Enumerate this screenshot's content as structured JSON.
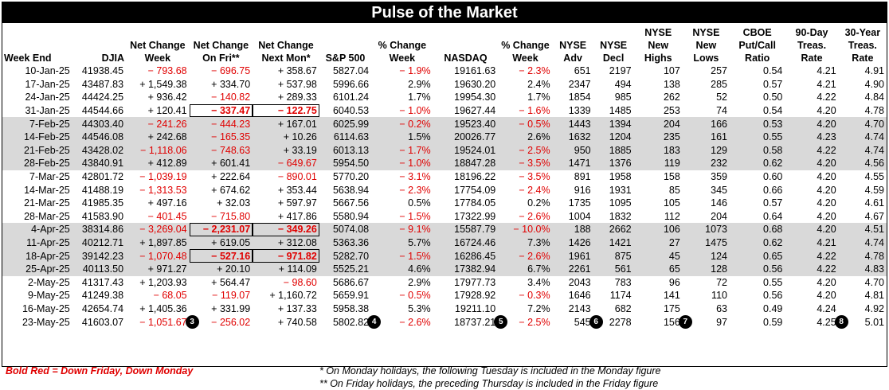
{
  "title": "Pulse of the Market",
  "headers": [
    "Week End",
    "DJIA",
    "Net Change Week",
    "Net Change On Fri**",
    "Net Change Next Mon*",
    "S&P 500",
    "% Change Week",
    "NASDAQ",
    "% Change Week",
    "NYSE Adv",
    "NYSE Decl",
    "NYSE New Highs",
    "NYSE New Lows",
    "CBOE Put/Call Ratio",
    "90-Day Treas. Rate",
    "30-Year Treas. Rate"
  ],
  "rows": [
    {
      "shade": false,
      "cells": [
        "10-Jan-25",
        "41938.45",
        "− 793.68",
        "− 696.75",
        "+ 358.67",
        "5827.04",
        "− 1.9%",
        "19161.63",
        "− 2.3%",
        "651",
        "2197",
        "107",
        "257",
        "0.54",
        "4.21",
        "4.91"
      ]
    },
    {
      "shade": false,
      "cells": [
        "17-Jan-25",
        "43487.83",
        "+ 1,549.38",
        "+ 334.70",
        "+ 537.98",
        "5996.66",
        "2.9%",
        "19630.20",
        "2.4%",
        "2347",
        "494",
        "138",
        "285",
        "0.57",
        "4.21",
        "4.90"
      ]
    },
    {
      "shade": false,
      "cells": [
        "24-Jan-25",
        "44424.25",
        "+ 936.42",
        "− 140.82",
        "+ 289.33",
        "6101.24",
        "1.7%",
        "19954.30",
        "1.7%",
        "1854",
        "985",
        "262",
        "52",
        "0.50",
        "4.22",
        "4.84"
      ]
    },
    {
      "shade": false,
      "cells": [
        "31-Jan-25",
        "44544.66",
        "+ 120.41",
        "− 337.47",
        "− 122.75",
        "6040.53",
        "− 1.0%",
        "19627.44",
        "− 1.6%",
        "1339",
        "1485",
        "253",
        "74",
        "0.54",
        "4.20",
        "4.78"
      ]
    },
    {
      "shade": true,
      "cells": [
        "7-Feb-25",
        "44303.40",
        "− 241.26",
        "− 444.23",
        "+ 167.01",
        "6025.99",
        "− 0.2%",
        "19523.40",
        "− 0.5%",
        "1443",
        "1394",
        "204",
        "166",
        "0.53",
        "4.20",
        "4.70"
      ]
    },
    {
      "shade": true,
      "cells": [
        "14-Feb-25",
        "44546.08",
        "+ 242.68",
        "− 165.35",
        "+ 10.26",
        "6114.63",
        "1.5%",
        "20026.77",
        "2.6%",
        "1632",
        "1204",
        "235",
        "161",
        "0.55",
        "4.23",
        "4.74"
      ]
    },
    {
      "shade": true,
      "cells": [
        "21-Feb-25",
        "43428.02",
        "− 1,118.06",
        "− 748.63",
        "+ 33.19",
        "6013.13",
        "− 1.7%",
        "19524.01",
        "− 2.5%",
        "950",
        "1885",
        "183",
        "129",
        "0.58",
        "4.22",
        "4.74"
      ]
    },
    {
      "shade": true,
      "cells": [
        "28-Feb-25",
        "43840.91",
        "+ 412.89",
        "+ 601.41",
        "− 649.67",
        "5954.50",
        "− 1.0%",
        "18847.28",
        "− 3.5%",
        "1471",
        "1376",
        "119",
        "232",
        "0.62",
        "4.20",
        "4.56"
      ]
    },
    {
      "shade": false,
      "cells": [
        "7-Mar-25",
        "42801.72",
        "− 1,039.19",
        "+ 222.64",
        "− 890.01",
        "5770.20",
        "− 3.1%",
        "18196.22",
        "− 3.5%",
        "891",
        "1958",
        "158",
        "359",
        "0.60",
        "4.20",
        "4.55"
      ]
    },
    {
      "shade": false,
      "cells": [
        "14-Mar-25",
        "41488.19",
        "− 1,313.53",
        "+ 674.62",
        "+ 353.44",
        "5638.94",
        "− 2.3%",
        "17754.09",
        "− 2.4%",
        "916",
        "1931",
        "85",
        "345",
        "0.66",
        "4.20",
        "4.59"
      ]
    },
    {
      "shade": false,
      "cells": [
        "21-Mar-25",
        "41985.35",
        "+ 497.16",
        "+ 32.03",
        "+ 597.97",
        "5667.56",
        "0.5%",
        "17784.05",
        "0.2%",
        "1735",
        "1095",
        "105",
        "146",
        "0.57",
        "4.20",
        "4.61"
      ]
    },
    {
      "shade": false,
      "cells": [
        "28-Mar-25",
        "41583.90",
        "− 401.45",
        "− 715.80",
        "+ 417.86",
        "5580.94",
        "− 1.5%",
        "17322.99",
        "− 2.6%",
        "1004",
        "1832",
        "112",
        "204",
        "0.64",
        "4.20",
        "4.67"
      ]
    },
    {
      "shade": true,
      "cells": [
        "4-Apr-25",
        "38314.86",
        "− 3,269.04",
        "− 2,231.07",
        "− 349.26",
        "5074.08",
        "− 9.1%",
        "15587.79",
        "− 10.0%",
        "188",
        "2662",
        "106",
        "1073",
        "0.68",
        "4.20",
        "4.51"
      ]
    },
    {
      "shade": true,
      "cells": [
        "11-Apr-25",
        "40212.71",
        "+ 1,897.85",
        "+ 619.05",
        "+ 312.08",
        "5363.36",
        "5.7%",
        "16724.46",
        "7.3%",
        "1426",
        "1421",
        "27",
        "1475",
        "0.62",
        "4.21",
        "4.74"
      ]
    },
    {
      "shade": true,
      "cells": [
        "18-Apr-25",
        "39142.23",
        "− 1,070.48",
        "− 527.16",
        "− 971.82",
        "5282.70",
        "− 1.5%",
        "16286.45",
        "− 2.6%",
        "1961",
        "875",
        "45",
        "124",
        "0.65",
        "4.22",
        "4.78"
      ]
    },
    {
      "shade": true,
      "cells": [
        "25-Apr-25",
        "40113.50",
        "+ 971.27",
        "+ 20.10",
        "+ 114.09",
        "5525.21",
        "4.6%",
        "17382.94",
        "6.7%",
        "2261",
        "561",
        "65",
        "128",
        "0.56",
        "4.22",
        "4.83"
      ]
    },
    {
      "shade": false,
      "cells": [
        "2-May-25",
        "41317.43",
        "+ 1,203.93",
        "+ 564.47",
        "− 98.60",
        "5686.67",
        "2.9%",
        "17977.73",
        "3.4%",
        "2043",
        "783",
        "96",
        "72",
        "0.55",
        "4.20",
        "4.70"
      ]
    },
    {
      "shade": false,
      "cells": [
        "9-May-25",
        "41249.38",
        "− 68.05",
        "− 119.07",
        "+ 1,160.72",
        "5659.91",
        "− 0.5%",
        "17928.92",
        "− 0.3%",
        "1646",
        "1174",
        "141",
        "110",
        "0.56",
        "4.20",
        "4.81"
      ]
    },
    {
      "shade": false,
      "cells": [
        "16-May-25",
        "42654.74",
        "+ 1,405.36",
        "+ 331.99",
        "+ 137.33",
        "5958.38",
        "5.3%",
        "19211.10",
        "7.2%",
        "2143",
        "682",
        "175",
        "63",
        "0.49",
        "4.24",
        "4.92"
      ]
    },
    {
      "shade": false,
      "cells": [
        "23-May-25",
        "41603.07",
        "− 1,051.67",
        "− 256.02",
        "+ 740.58",
        "5802.82",
        "− 2.6%",
        "18737.21",
        "− 2.5%",
        "545",
        "2278",
        "156",
        "97",
        "0.59",
        "4.25",
        "5.01"
      ]
    }
  ],
  "badges": [
    "3",
    "4",
    "5",
    "6",
    "7",
    "8"
  ],
  "footer": {
    "legend": "Bold Red = Down Friday, Down Monday",
    "note1": "* On Monday holidays, the following Tuesday is included in the Monday figure",
    "note2": "** On Friday holidays, the preceding Thursday is included in the Friday figure"
  },
  "colors": {
    "negative": "#e00000",
    "shade": "#d9d9d9",
    "title_bg": "#000000"
  }
}
